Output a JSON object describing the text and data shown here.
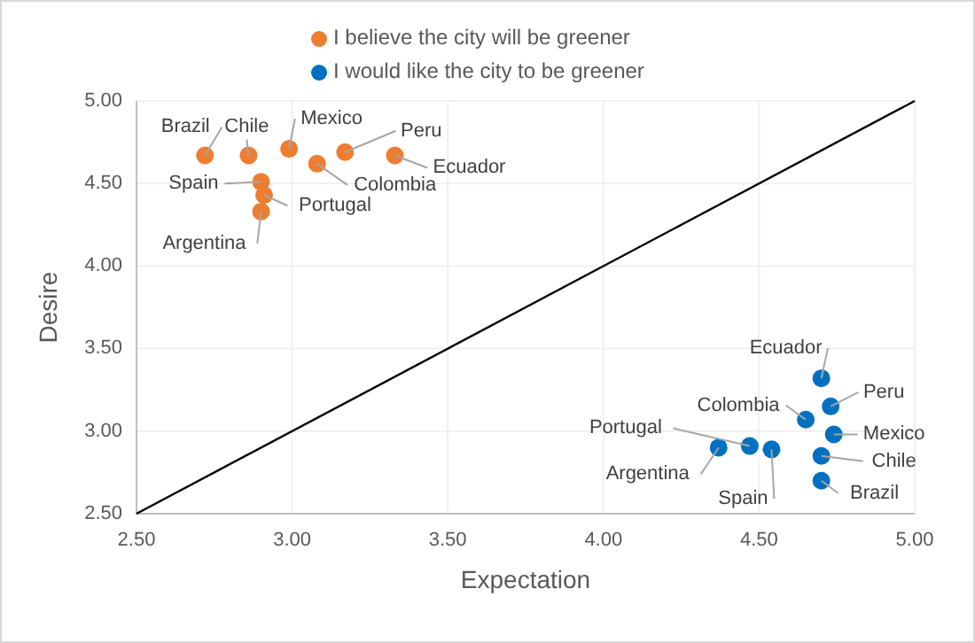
{
  "chart_data": {
    "type": "scatter",
    "xlabel": "Expectation",
    "ylabel": "Desire",
    "xlim": [
      2.5,
      5
    ],
    "ylim": [
      2.5,
      5
    ],
    "xticks": [
      {
        "value": 2.5,
        "label": "2.50"
      },
      {
        "value": 3,
        "label": "3.00"
      },
      {
        "value": 3.5,
        "label": "3.50"
      },
      {
        "value": 4,
        "label": "4.00"
      },
      {
        "value": 4.5,
        "label": "4.50"
      },
      {
        "value": 5,
        "label": "5.00"
      }
    ],
    "yticks": [
      {
        "value": 2.5,
        "label": "2.50"
      },
      {
        "value": 3,
        "label": "3.00"
      },
      {
        "value": 3.5,
        "label": "3.50"
      },
      {
        "value": 4,
        "label": "4.00"
      },
      {
        "value": 4.5,
        "label": "4.50"
      },
      {
        "value": 5,
        "label": "5.00"
      }
    ],
    "grid": true,
    "legend": "top",
    "series": [
      {
        "name": "I believe the city will be greener",
        "color": "#ed7d31",
        "marker": "circle",
        "x": [
          2.72,
          2.86,
          2.99,
          3.17,
          3.33,
          3.08,
          2.9,
          2.91,
          2.9
        ],
        "values": [
          4.67,
          4.67,
          4.71,
          4.69,
          4.67,
          4.62,
          4.51,
          4.43,
          4.33
        ]
      },
      {
        "name": "I would like the city to be greener",
        "color": "#0070c0",
        "marker": "circle",
        "x": [
          4.7,
          4.73,
          4.65,
          4.74,
          4.7,
          4.7,
          4.47,
          4.54,
          4.37
        ],
        "values": [
          3.32,
          3.15,
          3.07,
          2.98,
          2.85,
          2.7,
          2.91,
          2.89,
          2.9
        ]
      },
      {
        "type": "line",
        "color": "#000000",
        "x": [
          2.5,
          5
        ],
        "values": [
          2.5,
          5
        ],
        "marker": "none"
      }
    ],
    "annotations": [
      {
        "text": "Brazil",
        "x": 2.72,
        "y": 4.67
      },
      {
        "text": "Chile",
        "x": 2.86,
        "y": 4.67
      },
      {
        "text": "Mexico",
        "x": 2.99,
        "y": 4.71
      },
      {
        "text": "Peru",
        "x": 3.17,
        "y": 4.69
      },
      {
        "text": "Ecuador",
        "x": 3.33,
        "y": 4.67
      },
      {
        "text": "Colombia",
        "x": 3.08,
        "y": 4.62
      },
      {
        "text": "Spain",
        "x": 2.9,
        "y": 4.51
      },
      {
        "text": "Portugal",
        "x": 2.91,
        "y": 4.43
      },
      {
        "text": "Argentina",
        "x": 2.9,
        "y": 4.33
      },
      {
        "text": "Ecuador",
        "x": 4.7,
        "y": 3.32
      },
      {
        "text": "Peru",
        "x": 4.73,
        "y": 3.15
      },
      {
        "text": "Colombia",
        "x": 4.65,
        "y": 3.07
      },
      {
        "text": "Mexico",
        "x": 4.74,
        "y": 2.98
      },
      {
        "text": "Chile",
        "x": 4.7,
        "y": 2.85
      },
      {
        "text": "Brazil",
        "x": 4.7,
        "y": 2.7
      },
      {
        "text": "Portugal",
        "x": 4.47,
        "y": 2.91
      },
      {
        "text": "Spain",
        "x": 4.54,
        "y": 2.89
      },
      {
        "text": "Argentina",
        "x": 4.37,
        "y": 2.9
      }
    ]
  }
}
